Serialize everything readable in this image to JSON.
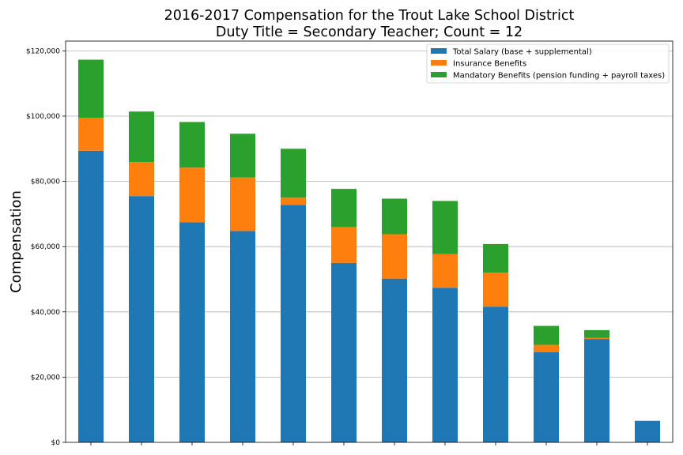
{
  "chart_data": {
    "type": "bar",
    "stacked": true,
    "title": [
      "2016-2017 Compensation for the Trout Lake School District",
      "Duty Title = Secondary Teacher; Count = 12"
    ],
    "xlabel": "",
    "ylabel": "Compensation",
    "ylim": [
      0,
      123000
    ],
    "yticks": [
      0,
      20000,
      40000,
      60000,
      80000,
      100000,
      120000
    ],
    "ytick_labels": [
      "$0",
      "$20,000",
      "$40,000",
      "$60,000",
      "$80,000",
      "$100,000",
      "$120,000"
    ],
    "grid": "horizontal",
    "legend_position": "top-right",
    "categories": [
      "",
      "",
      "",
      "",
      "",
      "",
      "",
      "",
      "",
      "",
      "",
      ""
    ],
    "series": [
      {
        "name": "Total Salary (base + supplemental)",
        "color": "#1f77b4",
        "values": [
          89400,
          75500,
          67500,
          64800,
          72800,
          55000,
          50200,
          47400,
          41600,
          27600,
          31700,
          6600
        ]
      },
      {
        "name": "Insurance Benefits",
        "color": "#ff7f0e",
        "values": [
          10100,
          10400,
          16700,
          16400,
          2200,
          11000,
          13600,
          10300,
          10400,
          2300,
          300,
          0
        ]
      },
      {
        "name": "Mandatory Benefits (pension funding + payroll taxes)",
        "color": "#2ca02c",
        "values": [
          17800,
          15500,
          14000,
          13400,
          15000,
          11700,
          10900,
          16300,
          8800,
          5800,
          2400,
          0
        ]
      }
    ]
  }
}
